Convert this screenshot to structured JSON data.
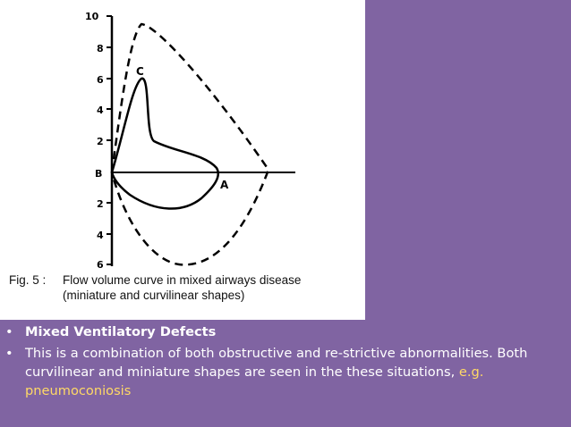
{
  "figure": {
    "y_ticks_up": [
      "10",
      "8",
      "6",
      "4",
      "2"
    ],
    "origin_label": "B",
    "y_ticks_down": [
      "2",
      "4",
      "6"
    ],
    "curve_labels": {
      "c": "C",
      "a": "A"
    },
    "caption_number": "Fig. 5 :",
    "caption_line1": "Flow volume curve in mixed airways disease",
    "caption_line2": "(miniature and curvilinear shapes)"
  },
  "bullets": {
    "item1": "Mixed Ventilatory Defects",
    "item2_main": "This is a combination of both obstructive and re-strictive abnormalities. Both curvilinear and miniature shapes are seen in the these situations, ",
    "item2_highlight": "e.g. pneumoconiosis",
    "bullet_char": "•"
  },
  "colors": {
    "slide_background": "#8064a2",
    "text": "#ffffff",
    "highlight": "#ffd966"
  }
}
